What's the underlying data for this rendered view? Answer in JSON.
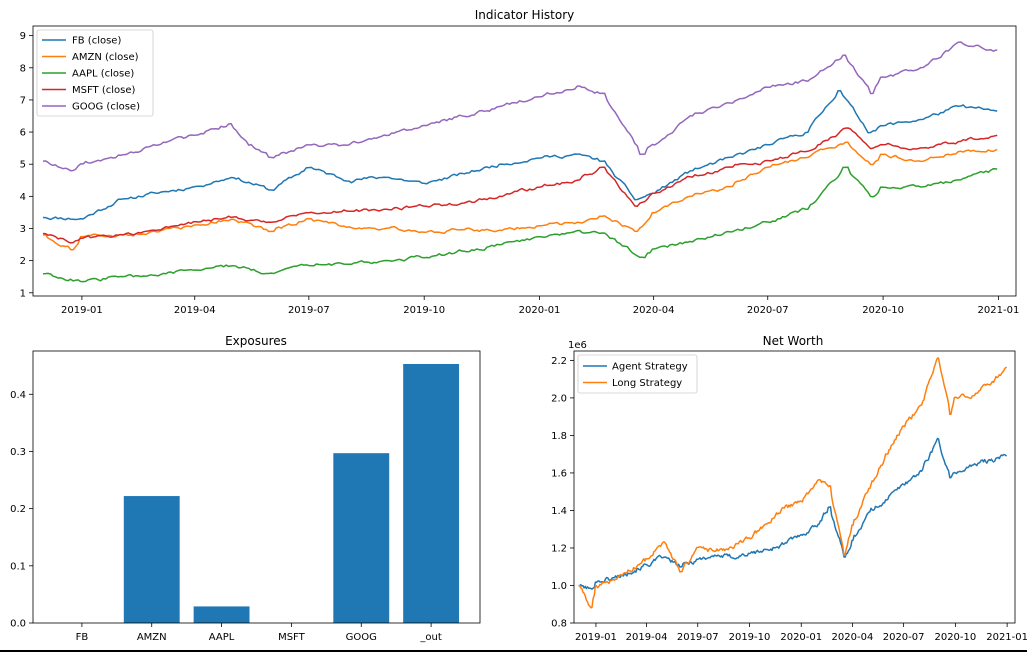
{
  "chart_data": [
    {
      "type": "line",
      "title": "Indicator History",
      "xlabel": "",
      "ylabel": "",
      "x_tick_labels": [
        "2019-01",
        "2019-04",
        "2019-07",
        "2019-10",
        "2020-01",
        "2020-04",
        "2020-07",
        "2020-10",
        "2021-01"
      ],
      "y_tick_labels": [
        "1",
        "2",
        "3",
        "4",
        "5",
        "6",
        "7",
        "8",
        "9"
      ],
      "ylim": [
        0.9,
        9.3
      ],
      "xlim": [
        "2018-11-23",
        "2021-01-15"
      ],
      "legend_position": "upper-left",
      "series": [
        {
          "name": "FB (close)",
          "color": "#1f77b4",
          "x": [
            "2018-12-01",
            "2019-01-01",
            "2019-02-01",
            "2019-03-01",
            "2019-04-01",
            "2019-05-01",
            "2019-06-01",
            "2019-07-01",
            "2019-08-01",
            "2019-09-01",
            "2019-10-01",
            "2019-11-01",
            "2019-12-01",
            "2020-01-01",
            "2020-02-01",
            "2020-02-20",
            "2020-03-18",
            "2020-04-01",
            "2020-05-01",
            "2020-06-01",
            "2020-07-01",
            "2020-08-01",
            "2020-08-27",
            "2020-09-20",
            "2020-10-01",
            "2020-11-01",
            "2020-12-01",
            "2020-12-31"
          ],
          "values": [
            3.35,
            3.3,
            3.9,
            4.1,
            4.3,
            4.6,
            4.2,
            4.9,
            4.5,
            4.6,
            4.4,
            4.7,
            5.0,
            5.2,
            5.3,
            5.1,
            3.9,
            4.1,
            4.8,
            5.2,
            5.6,
            6.0,
            7.3,
            6.0,
            6.2,
            6.4,
            6.8,
            6.65
          ]
        },
        {
          "name": "AMZN (close)",
          "color": "#ff7f0e",
          "x": [
            "2018-12-01",
            "2018-12-24",
            "2019-01-01",
            "2019-02-01",
            "2019-03-01",
            "2019-04-01",
            "2019-05-01",
            "2019-06-01",
            "2019-07-01",
            "2019-08-01",
            "2019-09-01",
            "2019-10-01",
            "2019-11-01",
            "2019-12-01",
            "2020-01-01",
            "2020-02-01",
            "2020-02-20",
            "2020-03-18",
            "2020-04-01",
            "2020-05-01",
            "2020-06-01",
            "2020-07-01",
            "2020-08-01",
            "2020-09-02",
            "2020-09-22",
            "2020-10-01",
            "2020-11-01",
            "2020-12-01",
            "2020-12-31"
          ],
          "values": [
            2.8,
            2.35,
            2.75,
            2.8,
            2.9,
            3.1,
            3.3,
            2.9,
            3.3,
            3.05,
            3.0,
            2.9,
            2.95,
            2.95,
            3.1,
            3.2,
            3.4,
            2.9,
            3.5,
            4.0,
            4.3,
            4.9,
            5.2,
            5.7,
            5.0,
            5.3,
            5.1,
            5.4,
            5.45
          ]
        },
        {
          "name": "AAPL (close)",
          "color": "#2ca02c",
          "x": [
            "2018-12-01",
            "2019-01-03",
            "2019-02-01",
            "2019-03-01",
            "2019-04-01",
            "2019-05-01",
            "2019-06-01",
            "2019-07-01",
            "2019-08-01",
            "2019-09-01",
            "2019-10-01",
            "2019-11-01",
            "2019-12-01",
            "2020-01-01",
            "2020-02-01",
            "2020-02-20",
            "2020-03-23",
            "2020-04-01",
            "2020-05-01",
            "2020-06-01",
            "2020-07-01",
            "2020-08-01",
            "2020-09-01",
            "2020-09-22",
            "2020-10-01",
            "2020-11-01",
            "2020-12-01",
            "2020-12-31"
          ],
          "values": [
            1.6,
            1.35,
            1.5,
            1.55,
            1.7,
            1.85,
            1.6,
            1.85,
            1.9,
            2.0,
            2.1,
            2.3,
            2.5,
            2.75,
            2.95,
            2.85,
            2.1,
            2.35,
            2.6,
            2.9,
            3.2,
            3.6,
            4.9,
            4.0,
            4.3,
            4.3,
            4.5,
            4.85
          ]
        },
        {
          "name": "MSFT (close)",
          "color": "#d62728",
          "x": [
            "2018-12-01",
            "2018-12-24",
            "2019-01-01",
            "2019-02-01",
            "2019-03-01",
            "2019-04-01",
            "2019-05-01",
            "2019-06-01",
            "2019-07-01",
            "2019-08-01",
            "2019-09-01",
            "2019-10-01",
            "2019-11-01",
            "2019-12-01",
            "2020-01-01",
            "2020-02-01",
            "2020-02-20",
            "2020-03-18",
            "2020-04-01",
            "2020-05-01",
            "2020-06-01",
            "2020-07-01",
            "2020-08-01",
            "2020-09-02",
            "2020-09-22",
            "2020-10-01",
            "2020-11-01",
            "2020-12-01",
            "2020-12-31"
          ],
          "values": [
            2.85,
            2.55,
            2.7,
            2.8,
            2.95,
            3.2,
            3.35,
            3.2,
            3.5,
            3.55,
            3.6,
            3.7,
            3.8,
            4.0,
            4.3,
            4.5,
            4.9,
            3.7,
            4.1,
            4.6,
            4.9,
            5.1,
            5.4,
            6.1,
            5.5,
            5.6,
            5.5,
            5.7,
            5.9
          ]
        },
        {
          "name": "GOOG (close)",
          "color": "#9467bd",
          "x": [
            "2018-12-01",
            "2018-12-24",
            "2019-01-01",
            "2019-02-01",
            "2019-03-01",
            "2019-04-01",
            "2019-04-29",
            "2019-05-15",
            "2019-06-01",
            "2019-07-01",
            "2019-08-01",
            "2019-09-01",
            "2019-10-01",
            "2019-11-01",
            "2019-12-01",
            "2020-01-01",
            "2020-02-01",
            "2020-02-20",
            "2020-03-23",
            "2020-04-01",
            "2020-05-01",
            "2020-06-01",
            "2020-07-01",
            "2020-08-01",
            "2020-08-31",
            "2020-09-22",
            "2020-10-01",
            "2020-11-01",
            "2020-12-01",
            "2020-12-31"
          ],
          "values": [
            5.1,
            4.8,
            5.0,
            5.3,
            5.6,
            5.9,
            6.25,
            5.6,
            5.2,
            5.6,
            5.6,
            5.9,
            6.2,
            6.5,
            6.8,
            7.1,
            7.45,
            7.2,
            5.3,
            5.6,
            6.5,
            6.9,
            7.4,
            7.6,
            8.4,
            7.2,
            7.7,
            8.0,
            8.8,
            8.55
          ]
        }
      ]
    },
    {
      "type": "bar",
      "title": "Exposures",
      "xlabel": "",
      "ylabel": "",
      "categories": [
        "FB",
        "AMZN",
        "AAPL",
        "MSFT",
        "GOOG",
        "_out"
      ],
      "values": [
        0.0,
        0.222,
        0.029,
        0.0,
        0.297,
        0.453
      ],
      "y_tick_labels": [
        "0.0",
        "0.1",
        "0.2",
        "0.3",
        "0.4"
      ],
      "ylim": [
        0,
        0.4757
      ],
      "bar_color": "#1f77b4"
    },
    {
      "type": "line",
      "title": "Net Worth",
      "xlabel": "",
      "ylabel": "",
      "y_offset_label": "1e6",
      "x_tick_labels": [
        "2019-01",
        "2019-04",
        "2019-07",
        "2019-10",
        "2020-01",
        "2020-04",
        "2020-07",
        "2020-10",
        "2021-01"
      ],
      "y_tick_labels": [
        "0.8",
        "1.0",
        "1.2",
        "1.4",
        "1.6",
        "1.8",
        "2.0",
        "2.2"
      ],
      "ylim": [
        0.8,
        2.25
      ],
      "xlim": [
        "2018-11-23",
        "2021-01-15"
      ],
      "legend_position": "upper-left",
      "series": [
        {
          "name": "Agent Strategy",
          "color": "#1f77b4",
          "x": [
            "2018-12-01",
            "2018-12-24",
            "2019-01-01",
            "2019-02-01",
            "2019-03-01",
            "2019-04-01",
            "2019-05-01",
            "2019-06-01",
            "2019-07-01",
            "2019-08-01",
            "2019-09-01",
            "2019-10-01",
            "2019-11-01",
            "2019-12-01",
            "2020-01-01",
            "2020-02-01",
            "2020-02-20",
            "2020-03-18",
            "2020-04-01",
            "2020-05-01",
            "2020-06-01",
            "2020-07-01",
            "2020-08-01",
            "2020-08-31",
            "2020-09-22",
            "2020-10-01",
            "2020-11-01",
            "2020-12-01",
            "2020-12-31"
          ],
          "values": [
            1.0,
            0.98,
            1.02,
            1.04,
            1.07,
            1.11,
            1.15,
            1.1,
            1.14,
            1.16,
            1.15,
            1.17,
            1.19,
            1.22,
            1.27,
            1.33,
            1.42,
            1.15,
            1.24,
            1.39,
            1.46,
            1.54,
            1.61,
            1.78,
            1.57,
            1.6,
            1.64,
            1.67,
            1.69
          ]
        },
        {
          "name": "Long Strategy",
          "color": "#ff7f0e",
          "x": [
            "2018-12-01",
            "2018-12-24",
            "2019-01-01",
            "2019-02-01",
            "2019-03-01",
            "2019-04-01",
            "2019-05-01",
            "2019-06-01",
            "2019-07-01",
            "2019-08-01",
            "2019-09-01",
            "2019-10-01",
            "2019-11-01",
            "2019-12-01",
            "2020-01-01",
            "2020-02-01",
            "2020-02-20",
            "2020-03-18",
            "2020-04-01",
            "2020-05-01",
            "2020-06-01",
            "2020-07-01",
            "2020-08-01",
            "2020-08-31",
            "2020-09-22",
            "2020-10-01",
            "2020-11-01",
            "2020-12-01",
            "2020-12-31"
          ],
          "values": [
            1.0,
            0.88,
            1.0,
            1.03,
            1.08,
            1.14,
            1.23,
            1.07,
            1.2,
            1.18,
            1.2,
            1.25,
            1.33,
            1.41,
            1.45,
            1.56,
            1.53,
            1.16,
            1.32,
            1.52,
            1.7,
            1.85,
            1.96,
            2.21,
            1.91,
            2.0,
            2.01,
            2.07,
            2.16
          ]
        }
      ]
    }
  ]
}
